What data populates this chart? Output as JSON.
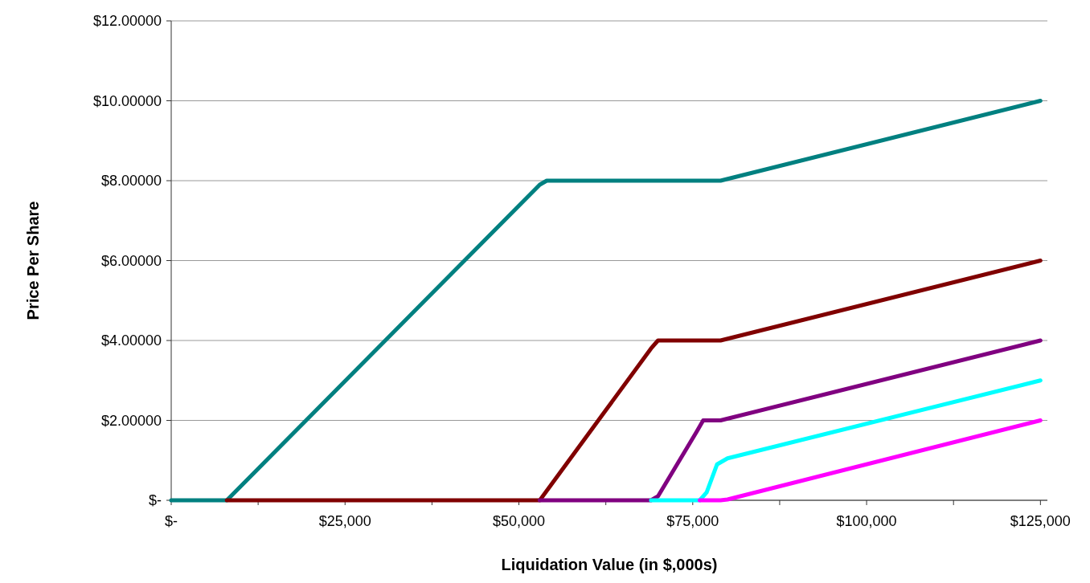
{
  "chart_data": {
    "type": "line",
    "xlabel": "Liquidation Value (in $,000s)",
    "ylabel": "Price Per Share",
    "xlim": [
      0,
      126000
    ],
    "xticks": [
      {
        "value": 0,
        "label": "$-"
      },
      {
        "value": 12500,
        "label": null
      },
      {
        "value": 25000,
        "label": "$25,000"
      },
      {
        "value": 37500,
        "label": null
      },
      {
        "value": 50000,
        "label": "$50,000"
      },
      {
        "value": 62500,
        "label": null
      },
      {
        "value": 75000,
        "label": "$75,000"
      },
      {
        "value": 87500,
        "label": null
      },
      {
        "value": 100000,
        "label": "$100,000"
      },
      {
        "value": 112500,
        "label": null
      },
      {
        "value": 125000,
        "label": "$125,000"
      }
    ],
    "ylim": [
      0,
      12
    ],
    "yticks": [
      {
        "value": 0,
        "label": "$-"
      },
      {
        "value": 2,
        "label": "$2.00000"
      },
      {
        "value": 4,
        "label": "$4.00000"
      },
      {
        "value": 6,
        "label": "$6.00000"
      },
      {
        "value": 8,
        "label": "$8.00000"
      },
      {
        "value": 10,
        "label": "$10.00000"
      },
      {
        "value": 12,
        "label": "$12.00000"
      }
    ],
    "grid": "y",
    "marker": "none",
    "line_style": "solid",
    "series": [
      {
        "color": "#008080",
        "x": [
          0,
          8000,
          53000,
          54000,
          79000,
          125000
        ],
        "values": [
          0,
          0,
          7.9,
          8,
          8,
          10
        ]
      },
      {
        "color": "#800000",
        "x": [
          8000,
          53000,
          69000,
          70000,
          79000,
          125000
        ],
        "values": [
          0,
          0,
          3.8,
          4,
          4,
          6
        ]
      },
      {
        "color": "#800080",
        "x": [
          53000,
          69000,
          70000,
          75500,
          76500,
          79000,
          125000
        ],
        "values": [
          0,
          0,
          0.1,
          1.7,
          2,
          2,
          4
        ]
      },
      {
        "color": "#00ffff",
        "x": [
          69000,
          76000,
          77000,
          78500,
          80000,
          125000
        ],
        "values": [
          0,
          0,
          0.2,
          0.9,
          1.05,
          3
        ]
      },
      {
        "color": "#ff00ff",
        "x": [
          76000,
          79000,
          80000,
          125000
        ],
        "values": [
          0,
          0,
          0.02,
          2
        ]
      }
    ]
  }
}
